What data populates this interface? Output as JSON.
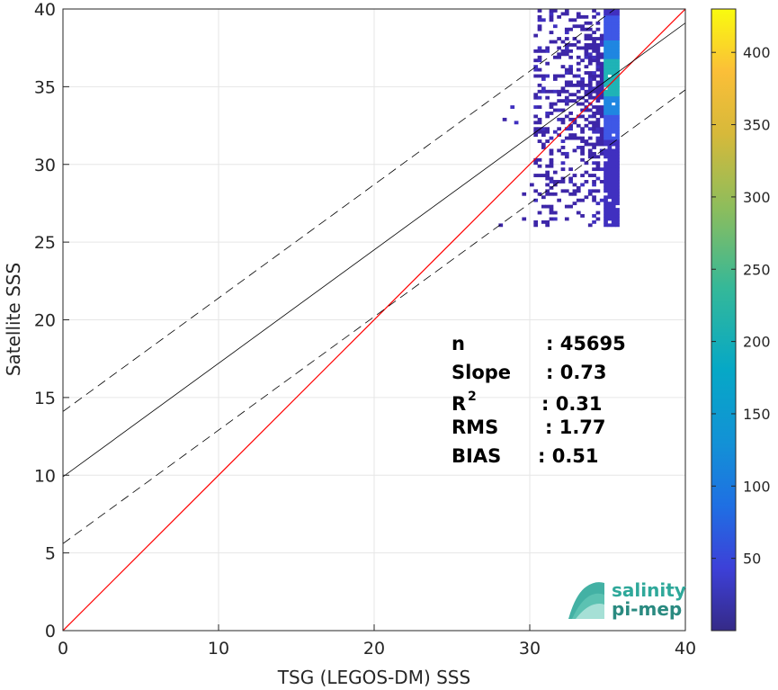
{
  "chart_data": {
    "type": "heatmap",
    "xlabel": "TSG (LEGOS-DM) SSS",
    "ylabel": "Satellite SSS",
    "xlim": [
      0,
      40
    ],
    "ylim": [
      0,
      40
    ],
    "x_ticks": [
      "0",
      "10",
      "20",
      "30",
      "40"
    ],
    "y_ticks": [
      "0",
      "5",
      "10",
      "15",
      "20",
      "25",
      "30",
      "35",
      "40"
    ],
    "grid": true,
    "colorbar": {
      "range": [
        0,
        430
      ],
      "ticks": [
        "50",
        "100",
        "150",
        "200",
        "250",
        "300",
        "350",
        "400"
      ],
      "colormap": "parula"
    },
    "lines": [
      {
        "name": "identity",
        "slope": 1.0,
        "intercept": 0,
        "color": "#ff0000",
        "style": "solid"
      },
      {
        "name": "regression",
        "slope": 0.73,
        "intercept": 9.9,
        "color": "#000000",
        "style": "solid"
      },
      {
        "name": "upper-bound",
        "slope": 0.73,
        "intercept": 14.1,
        "color": "#000000",
        "style": "dashed"
      },
      {
        "name": "lower-bound",
        "slope": 0.73,
        "intercept": 5.6,
        "color": "#000000",
        "style": "dashed"
      }
    ],
    "density_region": {
      "x_range": [
        28,
        35.5
      ],
      "y_range": [
        26,
        40
      ],
      "peak_x": 35.2,
      "peak_y": 35.5
    },
    "stats": [
      {
        "label": "n",
        "value": ": 45695"
      },
      {
        "label": "Slope",
        "value": ": 0.73"
      },
      {
        "label": "R",
        "sup": "2",
        "value": ": 0.31"
      },
      {
        "label": "RMS",
        "value": ": 1.77"
      },
      {
        "label": "BIAS",
        "value": ": 0.51"
      }
    ]
  },
  "logo": {
    "line1": "salinity",
    "line2": "pi-mep"
  }
}
